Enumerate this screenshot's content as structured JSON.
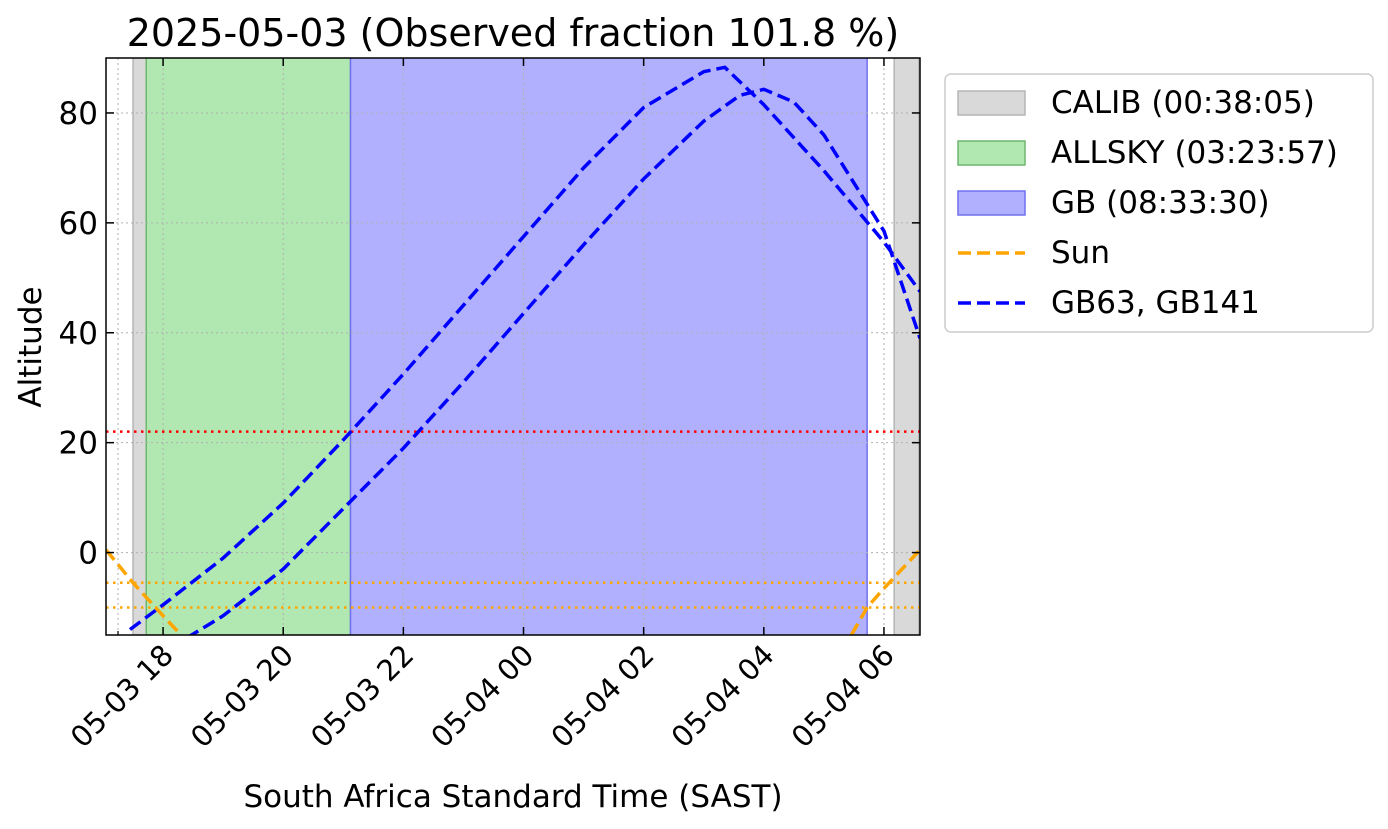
{
  "chart_data": {
    "type": "line",
    "title": "2025-05-03 (Observed fraction 101.8 %)",
    "xlabel": "South Africa Standard Time (SAST)",
    "ylabel": "Altitude",
    "xlim": [
      17.05,
      30.6
    ],
    "ylim": [
      -15,
      90
    ],
    "x_ticks": [
      {
        "x": 18,
        "label": "05-03 18"
      },
      {
        "x": 20,
        "label": "05-03 20"
      },
      {
        "x": 22,
        "label": "05-03 22"
      },
      {
        "x": 24,
        "label": "05-04 00"
      },
      {
        "x": 26,
        "label": "05-04 02"
      },
      {
        "x": 28,
        "label": "05-04 04"
      },
      {
        "x": 30,
        "label": "05-04 06"
      }
    ],
    "x_minor_ticks": [
      17.25
    ],
    "y_ticks": [
      0,
      20,
      40,
      60,
      80
    ],
    "grid": true,
    "legend_position": "outside-right",
    "spans": [
      {
        "name": "CALIB (00:38:05)",
        "color": "#d9d9d9",
        "edge": "#b5b5b5",
        "ranges": [
          [
            17.5,
            17.72
          ],
          [
            30.17,
            30.58
          ]
        ]
      },
      {
        "name": "ALLSKY (03:23:57)",
        "color": "#b1e8b1",
        "edge": "#6fb66f",
        "ranges": [
          [
            17.72,
            21.12
          ]
        ]
      },
      {
        "name": "GB (08:33:30)",
        "color": "#b0b0ff",
        "edge": "#7070ee",
        "ranges": [
          [
            21.12,
            29.72
          ]
        ]
      }
    ],
    "hlines": [
      {
        "y": 22,
        "color": "#ff0000"
      },
      {
        "y": -5.5,
        "color": "#ffa500"
      },
      {
        "y": -10,
        "color": "#ffa500"
      }
    ],
    "series": [
      {
        "name": "Sun",
        "color": "#ffa500",
        "legend": true,
        "x": [
          17.05,
          17.5,
          18.0,
          18.3,
          18.5
        ],
        "y": [
          0.5,
          -5.5,
          -11.5,
          -15.0,
          -17.5
        ]
      },
      {
        "name": "Sun",
        "color": "#ffa500",
        "legend": false,
        "x": [
          29.3,
          29.72,
          30.0,
          30.3,
          30.6
        ],
        "y": [
          -18.0,
          -10.0,
          -6.5,
          -3.0,
          0.5
        ]
      },
      {
        "name": "GB63, GB141",
        "color": "#0000ff",
        "legend": true,
        "x": [
          17.45,
          18.0,
          19.0,
          20.0,
          21.0,
          22.0,
          23.0,
          24.0,
          25.0,
          26.0,
          27.0,
          27.35,
          28.0,
          29.0,
          30.0,
          30.6
        ],
        "y": [
          -14.0,
          -9.5,
          -1.0,
          9.0,
          20.5,
          32.5,
          45.0,
          57.5,
          70.0,
          81.0,
          87.5,
          88.3,
          81.5,
          69.5,
          56.5,
          47.5
        ]
      },
      {
        "name": "GB63, GB141",
        "color": "#0000ff",
        "legend": false,
        "x": [
          18.4,
          19.0,
          20.0,
          21.0,
          22.0,
          23.0,
          24.0,
          25.0,
          26.0,
          27.0,
          27.6,
          28.0,
          28.5,
          29.0,
          30.0,
          30.6
        ],
        "y": [
          -15.5,
          -11.5,
          -3.0,
          8.0,
          19.0,
          31.0,
          43.5,
          56.0,
          68.0,
          78.5,
          83.2,
          84.3,
          82.0,
          76.0,
          58.5,
          39.0
        ]
      }
    ]
  }
}
